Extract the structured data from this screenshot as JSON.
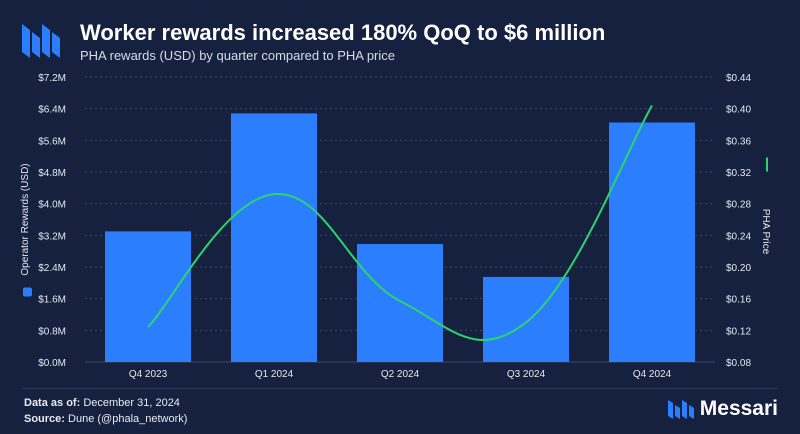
{
  "header": {
    "title": "Worker rewards increased 180% QoQ to $6 million",
    "subtitle": "PHA rewards (USD) by quarter compared to PHA price"
  },
  "footer": {
    "date_label": "Data as of:",
    "date_value": "December 31, 2024",
    "source_label": "Source:",
    "source_value": "Dune (@phala_network)",
    "brand": "Messari"
  },
  "colors": {
    "background": "#16213f",
    "bar": "#2b7fff",
    "line": "#2bd46f",
    "grid": "#3a4666"
  },
  "chart_data": {
    "type": "bar",
    "categories": [
      "Q4 2023",
      "Q1 2024",
      "Q2 2024",
      "Q3 2024",
      "Q4 2024"
    ],
    "series": [
      {
        "name": "Operator Rewards (USD)",
        "type": "bar",
        "axis": "left",
        "values": [
          3300000,
          6280000,
          2980000,
          2150000,
          6050000
        ]
      },
      {
        "name": "PHA Price",
        "type": "line",
        "axis": "right",
        "values": [
          0.124,
          0.292,
          0.157,
          0.13,
          0.404
        ]
      }
    ],
    "ylabel": "Operator Rewards (USD)",
    "ylabel_right": "PHA Price",
    "ylim": [
      0,
      7200000
    ],
    "ylim_right": [
      0.08,
      0.44
    ],
    "yticks": [
      "$0.0M",
      "$0.8M",
      "$1.6M",
      "$2.4M",
      "$3.2M",
      "$4.0M",
      "$4.8M",
      "$5.6M",
      "$6.4M",
      "$7.2M"
    ],
    "yticks_right": [
      "$0.08",
      "$0.12",
      "$0.16",
      "$0.20",
      "$0.24",
      "$0.28",
      "$0.32",
      "$0.36",
      "$0.40",
      "$0.44"
    ],
    "grid": true
  }
}
